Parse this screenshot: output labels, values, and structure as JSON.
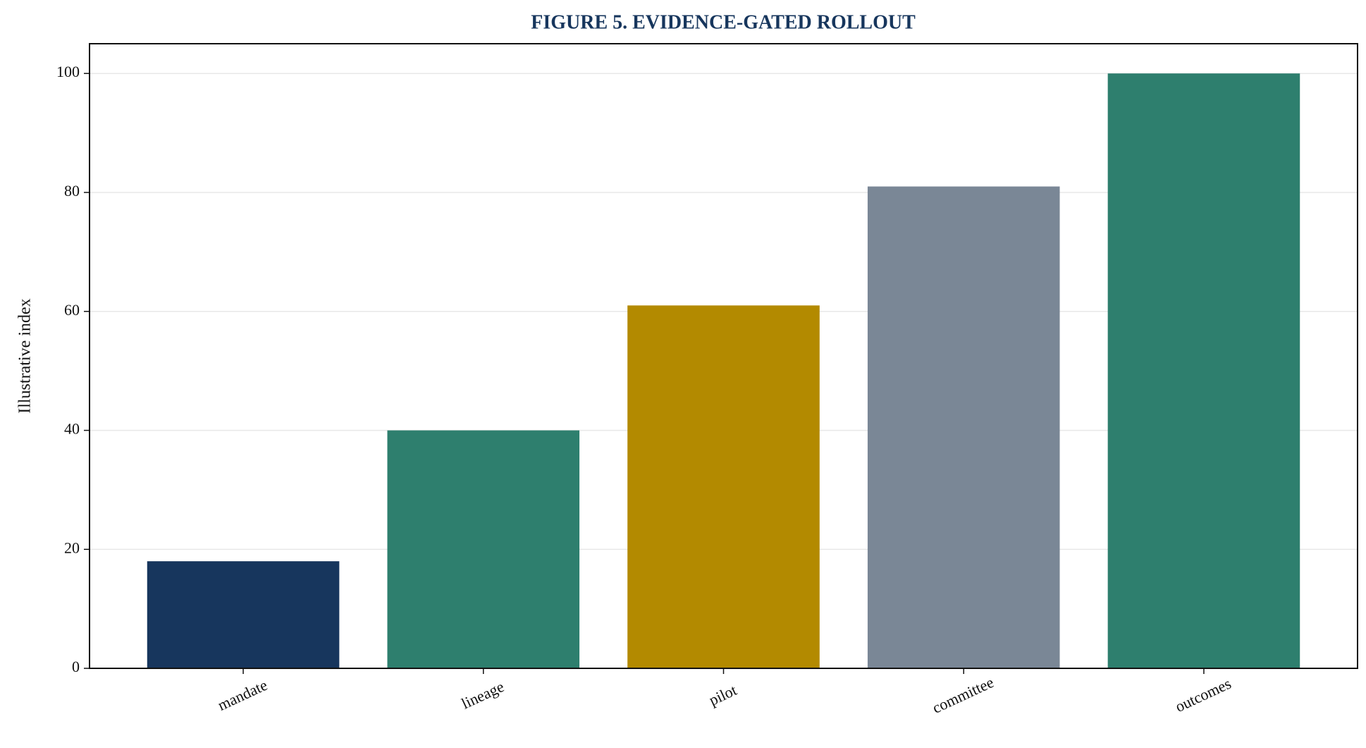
{
  "chart_data": {
    "type": "bar",
    "title": "FIGURE 5. EVIDENCE-GATED ROLLOUT",
    "y_label": "Illustrative index",
    "categories": [
      "mandate",
      "lineage",
      "pilot",
      "committee",
      "outcomes"
    ],
    "values": [
      18,
      40,
      61,
      81,
      100
    ],
    "colors": [
      "#17365d",
      "#2e7f6e",
      "#b38a00",
      "#7a8796",
      "#2e7f6e"
    ],
    "ylim": [
      0,
      105
    ],
    "yticks": [
      0,
      20,
      40,
      60,
      80,
      100
    ],
    "grid": true
  }
}
